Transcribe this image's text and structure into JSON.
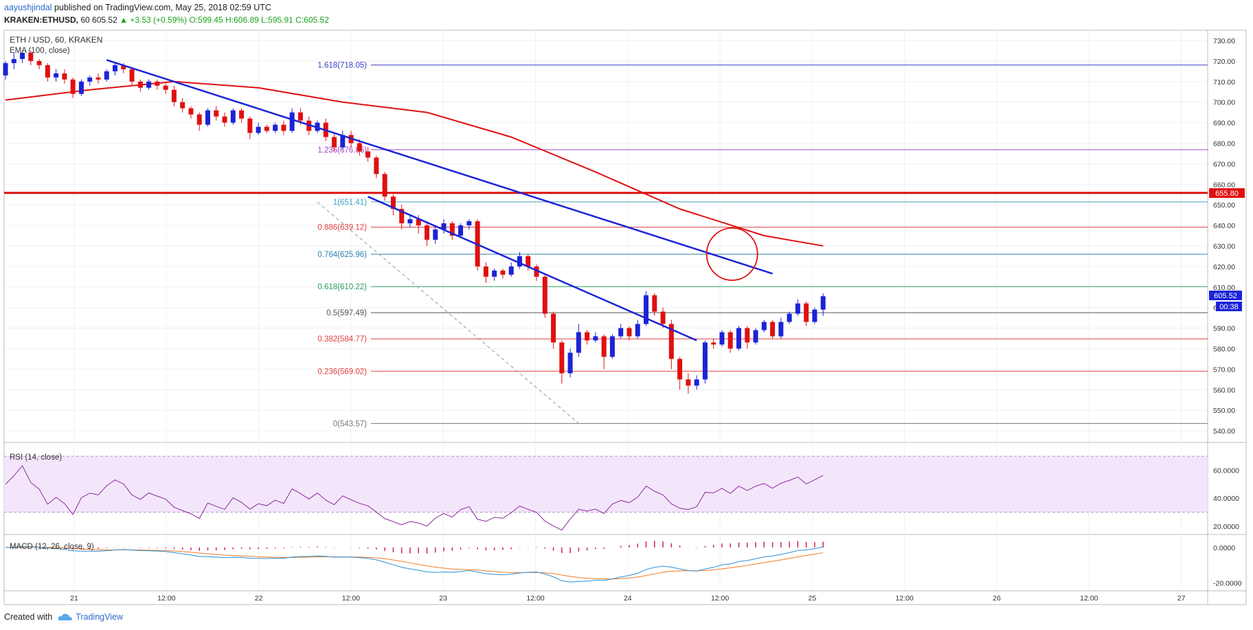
{
  "header": {
    "user": "aayushjindal",
    "published_text": "published on TradingView.com, May 25, 2018 02:59 UTC",
    "symbol": "KRAKEN:ETHUSD,",
    "period": "60",
    "price": "605.52",
    "change": "+3.53 (+0.59%)",
    "ohlc": "O:599.45 H:606.89 L:595.91 C:605.52"
  },
  "chart_title": "ETH / USD, 60, KRAKEN",
  "ema_label": "EMA (100, close)",
  "rsi_label": "RSI (14, close)",
  "macd_label": "MACD (12, 26, close, 9)",
  "price_label": "605.52",
  "countdown_label": "00:38",
  "resistance_label": "655.80",
  "footer": {
    "created": "Created with",
    "brand": "TradingView"
  },
  "colors": {
    "up": "#1b23d6",
    "down": "#e01010",
    "ema": "#e01010",
    "trend": "#1b23d6",
    "rsi": "#8a2a9a",
    "macd": "#2a90d8",
    "signal": "#f07a22"
  },
  "chart_data": {
    "type": "candlestick",
    "title": "ETH / USD, 60, KRAKEN",
    "y_axis": {
      "range": [
        535,
        735
      ],
      "ticks": [
        540,
        550,
        560,
        570,
        580,
        590,
        600,
        610,
        620,
        630,
        640,
        650,
        660,
        670,
        680,
        690,
        700,
        710,
        720,
        730
      ]
    },
    "x_axis": {
      "ticks": [
        "21",
        "12:00",
        "22",
        "12:00",
        "23",
        "12:00",
        "24",
        "12:00",
        "25",
        "12:00",
        "26",
        "12:00",
        "27"
      ]
    },
    "fibonacci": [
      {
        "label": "1.618(718.05)",
        "value": 718.05,
        "color": "#4040c8"
      },
      {
        "label": "1.236(676.86)",
        "value": 676.86,
        "color": "#a040c8"
      },
      {
        "label": "1(651.41)",
        "value": 651.41,
        "color": "#40a0c8"
      },
      {
        "label": "0.886(639.12)",
        "value": 639.12,
        "color": "#e04040"
      },
      {
        "label": "0.764(625.96)",
        "value": 625.96,
        "color": "#2a80b0"
      },
      {
        "label": "0.618(610.22)",
        "value": 610.22,
        "color": "#2aa060"
      },
      {
        "label": "0.5(597.49)",
        "value": 597.49,
        "color": "#555555"
      },
      {
        "label": "0.382(584.77)",
        "value": 584.77,
        "color": "#e04040"
      },
      {
        "label": "0.236(569.02)",
        "value": 569.02,
        "color": "#e04040"
      },
      {
        "label": "0(543.57)",
        "value": 543.57,
        "color": "#777777"
      }
    ],
    "horizontal_resistance": 655.8,
    "candles": [
      [
        713,
        719,
        720,
        711
      ],
      [
        719,
        721,
        724,
        716
      ],
      [
        721,
        724,
        725,
        719
      ],
      [
        724,
        720,
        725,
        718
      ],
      [
        720,
        718,
        721,
        716
      ],
      [
        718,
        712,
        719,
        710
      ],
      [
        712,
        714,
        716,
        710
      ],
      [
        714,
        711,
        716,
        709
      ],
      [
        711,
        704,
        712,
        702
      ],
      [
        704,
        710,
        711,
        703
      ],
      [
        710,
        712,
        713,
        708
      ],
      [
        712,
        711,
        714,
        709
      ],
      [
        711,
        715,
        716,
        710
      ],
      [
        715,
        718,
        719,
        713
      ],
      [
        718,
        716,
        719,
        714
      ],
      [
        716,
        710,
        717,
        708
      ],
      [
        710,
        707,
        711,
        705
      ],
      [
        707,
        710,
        711,
        706
      ],
      [
        710,
        708,
        711,
        706
      ],
      [
        708,
        706,
        709,
        704
      ],
      [
        706,
        700,
        708,
        698
      ],
      [
        700,
        697,
        702,
        695
      ],
      [
        697,
        694,
        698,
        692
      ],
      [
        694,
        689,
        695,
        686
      ],
      [
        689,
        696,
        697,
        688
      ],
      [
        696,
        693,
        698,
        691
      ],
      [
        693,
        690,
        695,
        688
      ],
      [
        690,
        696,
        697,
        689
      ],
      [
        696,
        692,
        697,
        690
      ],
      [
        692,
        685,
        693,
        682
      ],
      [
        685,
        688,
        690,
        684
      ],
      [
        688,
        686,
        689,
        685
      ],
      [
        686,
        689,
        690,
        685
      ],
      [
        689,
        686,
        691,
        684
      ],
      [
        686,
        695,
        697,
        685
      ],
      [
        695,
        691,
        697,
        689
      ],
      [
        691,
        686,
        693,
        684
      ],
      [
        686,
        690,
        691,
        685
      ],
      [
        690,
        683,
        692,
        681
      ],
      [
        683,
        678,
        685,
        676
      ],
      [
        678,
        684,
        686,
        677
      ],
      [
        684,
        680,
        686,
        678
      ],
      [
        680,
        676,
        682,
        674
      ],
      [
        676,
        673,
        678,
        671
      ],
      [
        673,
        665,
        674,
        663
      ],
      [
        665,
        654,
        666,
        652
      ],
      [
        654,
        648,
        655,
        645
      ],
      [
        648,
        641,
        650,
        638
      ],
      [
        641,
        643,
        645,
        639
      ],
      [
        643,
        640,
        645,
        636
      ],
      [
        640,
        633,
        641,
        630
      ],
      [
        633,
        638,
        640,
        631
      ],
      [
        638,
        641,
        643,
        636
      ],
      [
        641,
        635,
        642,
        633
      ],
      [
        635,
        640,
        641,
        634
      ],
      [
        640,
        642,
        643,
        638
      ],
      [
        642,
        620,
        643,
        618
      ],
      [
        620,
        615,
        622,
        612
      ],
      [
        615,
        618,
        619,
        613
      ],
      [
        618,
        616,
        619,
        614
      ],
      [
        616,
        620,
        622,
        615
      ],
      [
        620,
        625,
        627,
        619
      ],
      [
        625,
        620,
        626,
        618
      ],
      [
        620,
        615,
        621,
        613
      ],
      [
        615,
        597,
        616,
        595
      ],
      [
        597,
        583,
        598,
        580
      ],
      [
        583,
        568,
        584,
        563
      ],
      [
        568,
        578,
        580,
        566
      ],
      [
        578,
        588,
        592,
        576
      ],
      [
        588,
        584,
        589,
        582
      ],
      [
        584,
        586,
        588,
        583
      ],
      [
        586,
        576,
        587,
        570
      ],
      [
        576,
        586,
        587,
        575
      ],
      [
        586,
        590,
        592,
        585
      ],
      [
        590,
        586,
        591,
        584
      ],
      [
        586,
        592,
        594,
        585
      ],
      [
        592,
        606,
        608,
        591
      ],
      [
        606,
        598,
        607,
        596
      ],
      [
        598,
        592,
        600,
        590
      ],
      [
        592,
        575,
        594,
        570
      ],
      [
        575,
        565,
        576,
        560
      ],
      [
        565,
        562,
        568,
        558
      ],
      [
        562,
        565,
        567,
        560
      ],
      [
        565,
        583,
        584,
        563
      ],
      [
        583,
        582,
        585,
        580
      ],
      [
        582,
        588,
        589,
        581
      ],
      [
        588,
        580,
        589,
        578
      ],
      [
        580,
        590,
        591,
        579
      ],
      [
        590,
        583,
        591,
        580
      ],
      [
        583,
        589,
        590,
        582
      ],
      [
        589,
        593,
        594,
        588
      ],
      [
        593,
        586,
        594,
        585
      ],
      [
        586,
        593,
        595,
        585
      ],
      [
        593,
        597,
        598,
        592
      ],
      [
        597,
        602,
        604,
        596
      ],
      [
        602,
        593,
        603,
        591
      ],
      [
        593,
        599,
        600,
        592
      ],
      [
        599,
        605.5,
        606.9,
        595.9
      ]
    ],
    "ema100": [
      [
        0,
        701
      ],
      [
        10,
        706
      ],
      [
        20,
        710
      ],
      [
        30,
        707
      ],
      [
        40,
        700
      ],
      [
        50,
        695
      ],
      [
        60,
        683
      ],
      [
        70,
        666
      ],
      [
        80,
        648
      ],
      [
        90,
        635
      ],
      [
        97,
        630
      ]
    ],
    "rsi": {
      "range": [
        15,
        75
      ],
      "levels": [
        30,
        70
      ],
      "ticks": [
        "60.0000",
        "40.0000",
        "20.0000"
      ]
    },
    "macd": {
      "range": [
        -23,
        5
      ],
      "ticks": [
        "0.0000",
        "-20.0000"
      ]
    }
  }
}
